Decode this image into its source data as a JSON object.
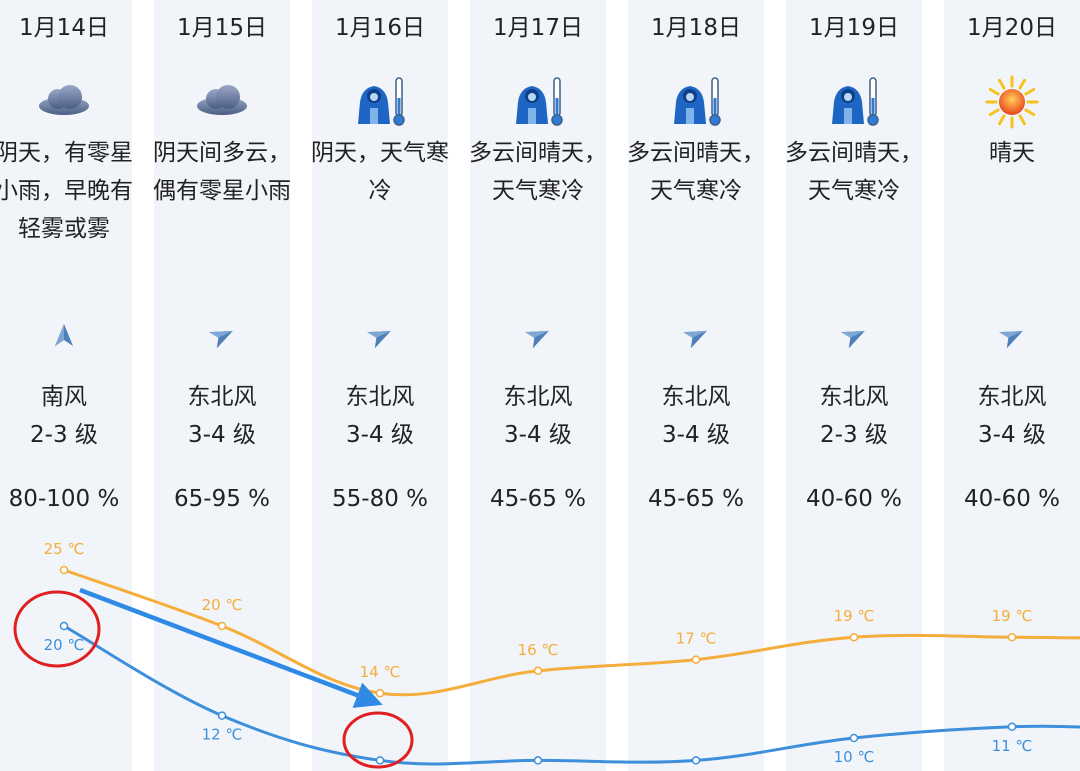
{
  "days": [
    {
      "date": "1月14日",
      "icon": "cloud-icon",
      "desc": "阴天，有零星小雨，早晚有轻雾或雾",
      "wind_dir": "南风",
      "wind_level": "2-3 级",
      "humidity": "80-100 %",
      "arrow": "north-arrow",
      "high": "25 ℃",
      "low": "20 ℃"
    },
    {
      "date": "1月15日",
      "icon": "cloud-icon",
      "desc": "阴天间多云，偶有零星小雨",
      "wind_dir": "东北风",
      "wind_level": "3-4 级",
      "humidity": "65-95 %",
      "arrow": "northeast-arrow",
      "high": "20 ℃",
      "low": "12 ℃"
    },
    {
      "date": "1月16日",
      "icon": "cold-weather-icon",
      "desc": "阴天，天气寒冷",
      "wind_dir": "东北风",
      "wind_level": "3-4 级",
      "humidity": "55-80 %",
      "arrow": "northeast-arrow",
      "high": "14 ℃",
      "low": "8 ℃"
    },
    {
      "date": "1月17日",
      "icon": "cold-weather-icon",
      "desc": "多云间晴天，天气寒冷",
      "wind_dir": "东北风",
      "wind_level": "3-4 级",
      "humidity": "45-65 %",
      "arrow": "northeast-arrow",
      "high": "16 ℃",
      "low": "8 ℃"
    },
    {
      "date": "1月18日",
      "icon": "cold-weather-icon",
      "desc": "多云间晴天，天气寒冷",
      "wind_dir": "东北风",
      "wind_level": "3-4 级",
      "humidity": "45-65 %",
      "arrow": "northeast-arrow",
      "high": "17 ℃",
      "low": "8 ℃"
    },
    {
      "date": "1月19日",
      "icon": "cold-weather-icon",
      "desc": "多云间晴天，天气寒冷",
      "wind_dir": "东北风",
      "wind_level": "2-3 级",
      "humidity": "40-60 %",
      "arrow": "northeast-arrow",
      "high": "19 ℃",
      "low": "10 ℃"
    },
    {
      "date": "1月20日",
      "icon": "sun-icon",
      "desc": "晴天",
      "wind_dir": "东北风",
      "wind_level": "3-4 级",
      "humidity": "40-60 %",
      "arrow": "northeast-arrow",
      "high": "19 ℃",
      "low": "11 ℃"
    }
  ],
  "colors": {
    "high": "#f5ad3b",
    "low": "#3d8fdc",
    "annotation": "#e02020",
    "trend_arrow": "#2f8ae6",
    "stripe": "#f1f5f9"
  },
  "chart_data": {
    "type": "line",
    "categories": [
      "1月14日",
      "1月15日",
      "1月16日",
      "1月17日",
      "1月18日",
      "1月19日",
      "1月20日"
    ],
    "series": [
      {
        "values": [
          25,
          20,
          14,
          16,
          17,
          19,
          19
        ]
      },
      {
        "values": [
          20,
          12,
          8,
          8,
          8,
          10,
          11
        ]
      }
    ]
  }
}
